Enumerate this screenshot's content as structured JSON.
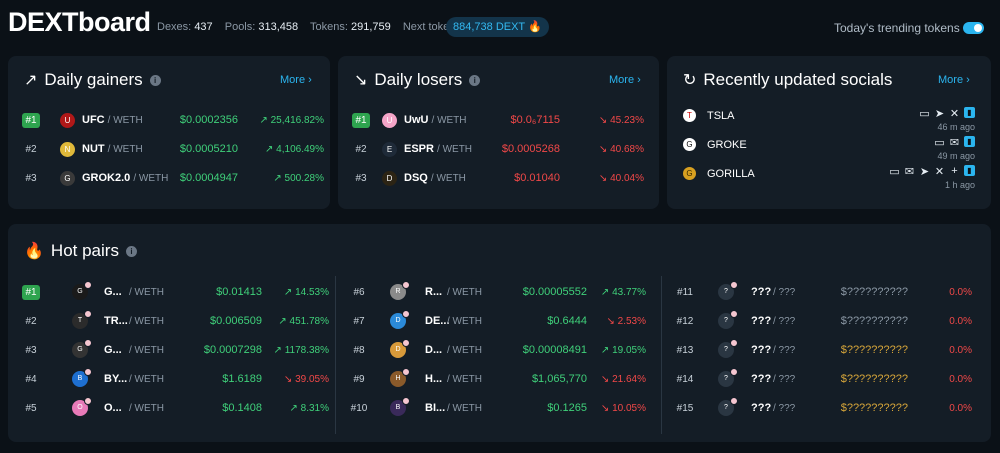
{
  "header": {
    "logo": "DEXTboard",
    "dexes_label": "Dexes:",
    "dexes": "437",
    "pools_label": "Pools:",
    "pools": "313,458",
    "tokens_label": "Tokens:",
    "tokens": "291,759",
    "burn_label": "Next token burn:",
    "burn_value": "884,738 DEXT",
    "trending_label": "Today's trending tokens",
    "trending_on": true
  },
  "gainers": {
    "title": "Daily gainers",
    "more": "More ›",
    "rows": [
      {
        "rank": "#1",
        "symbol": "UFC",
        "pair": "/ WETH",
        "price": "$0.0002356",
        "change": "25,416.82%"
      },
      {
        "rank": "#2",
        "symbol": "NUT",
        "pair": "/ WETH",
        "price": "$0.0005210",
        "change": "4,106.49%"
      },
      {
        "rank": "#3",
        "symbol": "GROK2.0",
        "pair": "/ WETH",
        "price": "$0.0004947",
        "change": "500.28%"
      }
    ]
  },
  "losers": {
    "title": "Daily losers",
    "more": "More ›",
    "rows": [
      {
        "rank": "#1",
        "symbol": "UwU",
        "pair": "/ WETH",
        "price": "$0.0₆7115",
        "change": "45.23%"
      },
      {
        "rank": "#2",
        "symbol": "ESPR",
        "pair": "/ WETH",
        "price": "$0.0005268",
        "change": "40.68%"
      },
      {
        "rank": "#3",
        "symbol": "DSQ",
        "pair": "/ WETH",
        "price": "$0.01040",
        "change": "40.04%"
      }
    ]
  },
  "socials": {
    "title": "Recently updated socials",
    "more": "More ›",
    "rows": [
      {
        "name": "TSLA",
        "time": "46 m ago",
        "links": [
          "website-icon",
          "telegram-icon",
          "x-icon",
          "dextools-icon"
        ]
      },
      {
        "name": "GROKE",
        "time": "49 m ago",
        "links": [
          "website-icon",
          "email-icon",
          "dextools-icon"
        ]
      },
      {
        "name": "GORILLA",
        "time": "1 h ago",
        "links": [
          "website-icon",
          "email-icon",
          "telegram-icon",
          "x-icon",
          "plus-icon",
          "dextools-icon"
        ]
      }
    ]
  },
  "hot": {
    "title": "Hot pairs",
    "col1": [
      {
        "rank": "#1",
        "symbol": "G...",
        "pair": "/ WETH",
        "price": "$0.01413",
        "change": "14.53%",
        "dir": "up"
      },
      {
        "rank": "#2",
        "symbol": "TR...",
        "pair": "/ WETH",
        "price": "$0.006509",
        "change": "451.78%",
        "dir": "up"
      },
      {
        "rank": "#3",
        "symbol": "G...",
        "pair": "/ WETH",
        "price": "$0.0007298",
        "change": "1178.38%",
        "dir": "up"
      },
      {
        "rank": "#4",
        "symbol": "BY...",
        "pair": "/ WETH",
        "price": "$1.6189",
        "change": "39.05%",
        "dir": "down"
      },
      {
        "rank": "#5",
        "symbol": "O...",
        "pair": "/ WETH",
        "price": "$0.1408",
        "change": "8.31%",
        "dir": "up"
      }
    ],
    "col2": [
      {
        "rank": "#6",
        "symbol": "R...",
        "pair": "/ WETH",
        "price": "$0.00005552",
        "change": "43.77%",
        "dir": "up"
      },
      {
        "rank": "#7",
        "symbol": "DE...",
        "pair": "/ WETH",
        "price": "$0.6444",
        "change": "2.53%",
        "dir": "down"
      },
      {
        "rank": "#8",
        "symbol": "D...",
        "pair": "/ WETH",
        "price": "$0.00008491",
        "change": "19.05%",
        "dir": "up"
      },
      {
        "rank": "#9",
        "symbol": "H...",
        "pair": "/ WETH",
        "price": "$1,065,770",
        "change": "21.64%",
        "dir": "down"
      },
      {
        "rank": "#10",
        "symbol": "BI...",
        "pair": "/ WETH",
        "price": "$0.1265",
        "change": "10.05%",
        "dir": "down"
      }
    ],
    "col3": [
      {
        "rank": "#11",
        "symbol": "???",
        "pair": "/ ???",
        "price": "$??????????",
        "change": "0.0%",
        "color": "dim"
      },
      {
        "rank": "#12",
        "symbol": "???",
        "pair": "/ ???",
        "price": "$??????????",
        "change": "0.0%",
        "color": "dim"
      },
      {
        "rank": "#13",
        "symbol": "???",
        "pair": "/ ???",
        "price": "$??????????",
        "change": "0.0%",
        "color": "gold"
      },
      {
        "rank": "#14",
        "symbol": "???",
        "pair": "/ ???",
        "price": "$??????????",
        "change": "0.0%",
        "color": "gold"
      },
      {
        "rank": "#15",
        "symbol": "???",
        "pair": "/ ???",
        "price": "$??????????",
        "change": "0.0%",
        "color": "gold"
      }
    ]
  },
  "colors": {
    "accent": "#2bb5ef",
    "up": "#3fd07a",
    "down": "#f14848",
    "card": "#141d26",
    "bg": "#0b1117"
  }
}
